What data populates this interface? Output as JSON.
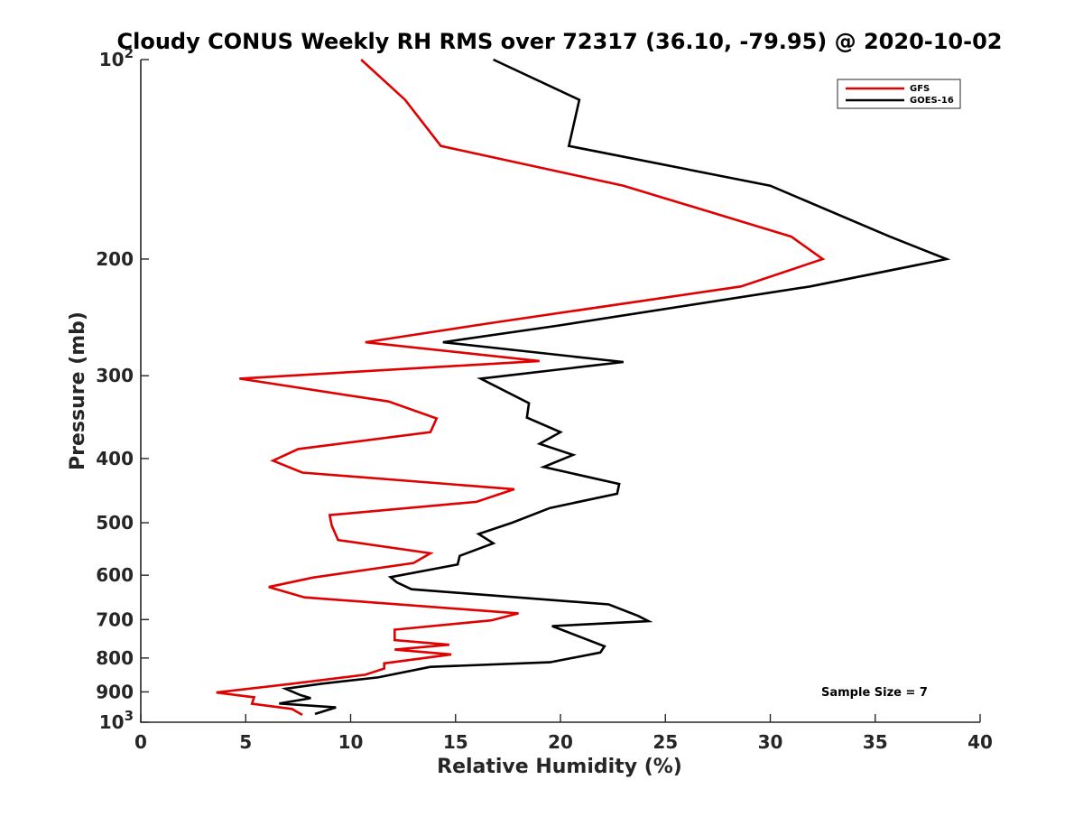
{
  "chart_data": {
    "type": "line",
    "title": "Cloudy CONUS Weekly RH RMS over 72317 (36.10, -79.95) @ 2020-10-02",
    "xlabel": "Relative Humidity (%)",
    "ylabel": "Pressure (mb)",
    "xlim": [
      0,
      40
    ],
    "ylim": [
      100,
      1000
    ],
    "yscale": "log",
    "y_reversed": true,
    "x_ticks": [
      0,
      5,
      10,
      15,
      20,
      25,
      30,
      35,
      40
    ],
    "x_tick_labels": [
      "0",
      "5",
      "10",
      "15",
      "20",
      "25",
      "30",
      "35",
      "40"
    ],
    "y_ticks": [
      100,
      200,
      300,
      400,
      500,
      600,
      700,
      800,
      900,
      1000
    ],
    "y_tick_labels": [
      {
        "base": "10",
        "exp": "2"
      },
      {
        "base": "200",
        "exp": ""
      },
      {
        "base": "300",
        "exp": ""
      },
      {
        "base": "400",
        "exp": ""
      },
      {
        "base": "500",
        "exp": ""
      },
      {
        "base": "600",
        "exp": ""
      },
      {
        "base": "700",
        "exp": ""
      },
      {
        "base": "800",
        "exp": ""
      },
      {
        "base": "900",
        "exp": ""
      },
      {
        "base": "10",
        "exp": "3"
      }
    ],
    "grid": false,
    "legend_position": "top-right",
    "series": [
      {
        "name": "GFS",
        "color": "#e00000",
        "points": [
          [
            10.5,
            100
          ],
          [
            12.6,
            115
          ],
          [
            14.3,
            135
          ],
          [
            23.0,
            155
          ],
          [
            31.0,
            185
          ],
          [
            32.5,
            200
          ],
          [
            28.6,
            220
          ],
          [
            16.6,
            250
          ],
          [
            10.7,
            267
          ],
          [
            19.0,
            285
          ],
          [
            4.7,
            303
          ],
          [
            11.8,
            328
          ],
          [
            14.1,
            348
          ],
          [
            13.8,
            365
          ],
          [
            7.5,
            387
          ],
          [
            6.3,
            403
          ],
          [
            7.7,
            420
          ],
          [
            17.8,
            445
          ],
          [
            16.0,
            465
          ],
          [
            9.0,
            487
          ],
          [
            9.1,
            505
          ],
          [
            9.4,
            531
          ],
          [
            13.8,
            556
          ],
          [
            13.0,
            575
          ],
          [
            8.2,
            605
          ],
          [
            6.1,
            625
          ],
          [
            7.8,
            648
          ],
          [
            18.0,
            685
          ],
          [
            16.7,
            702
          ],
          [
            12.1,
            725
          ],
          [
            12.1,
            752
          ],
          [
            14.7,
            764
          ],
          [
            12.1,
            777
          ],
          [
            14.8,
            790
          ],
          [
            11.6,
            815
          ],
          [
            11.6,
            830
          ],
          [
            10.7,
            848
          ],
          [
            7.2,
            875
          ],
          [
            3.6,
            902
          ],
          [
            5.4,
            917
          ],
          [
            5.3,
            938
          ],
          [
            7.2,
            955
          ],
          [
            7.7,
            975
          ]
        ]
      },
      {
        "name": "GOES-16",
        "color": "#000000",
        "points": [
          [
            16.8,
            100
          ],
          [
            20.9,
            115
          ],
          [
            20.4,
            135
          ],
          [
            30.0,
            155
          ],
          [
            35.7,
            185
          ],
          [
            38.4,
            200
          ],
          [
            31.9,
            220
          ],
          [
            19.9,
            252
          ],
          [
            14.4,
            267
          ],
          [
            23.0,
            286
          ],
          [
            16.2,
            303
          ],
          [
            18.5,
            330
          ],
          [
            18.4,
            347
          ],
          [
            20.0,
            365
          ],
          [
            19.0,
            380
          ],
          [
            20.6,
            395
          ],
          [
            19.2,
            412
          ],
          [
            22.8,
            437
          ],
          [
            22.7,
            452
          ],
          [
            19.5,
            475
          ],
          [
            17.7,
            500
          ],
          [
            16.1,
            520
          ],
          [
            16.8,
            537
          ],
          [
            15.2,
            561
          ],
          [
            15.1,
            578
          ],
          [
            11.9,
            604
          ],
          [
            12.2,
            615
          ],
          [
            12.9,
            630
          ],
          [
            22.3,
            664
          ],
          [
            23.7,
            691
          ],
          [
            24.2,
            704
          ],
          [
            19.6,
            716
          ],
          [
            22.1,
            768
          ],
          [
            21.9,
            785
          ],
          [
            19.5,
            812
          ],
          [
            13.8,
            825
          ],
          [
            11.3,
            856
          ],
          [
            8.6,
            875
          ],
          [
            6.9,
            890
          ],
          [
            7.6,
            910
          ],
          [
            8.1,
            920
          ],
          [
            6.6,
            937
          ],
          [
            9.3,
            950
          ],
          [
            8.3,
            972
          ]
        ]
      }
    ],
    "annotations": [
      {
        "text": "Sample Size = 7",
        "x": 33.8,
        "y": 910
      }
    ]
  }
}
